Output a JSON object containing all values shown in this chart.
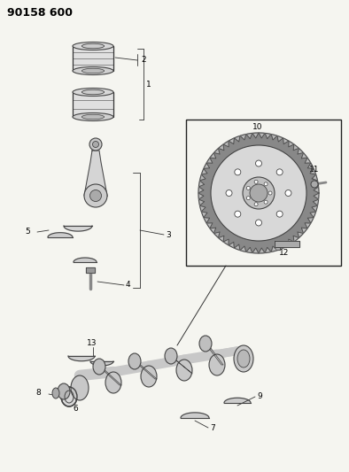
{
  "title": "90158 600",
  "bg_color": "#f5f5f0",
  "fg_color": "#000000",
  "line_color": "#333333",
  "part_edge": "#444444",
  "part_fill": "#cccccc",
  "part_fill2": "#bbbbbb",
  "dark_fill": "#888888"
}
